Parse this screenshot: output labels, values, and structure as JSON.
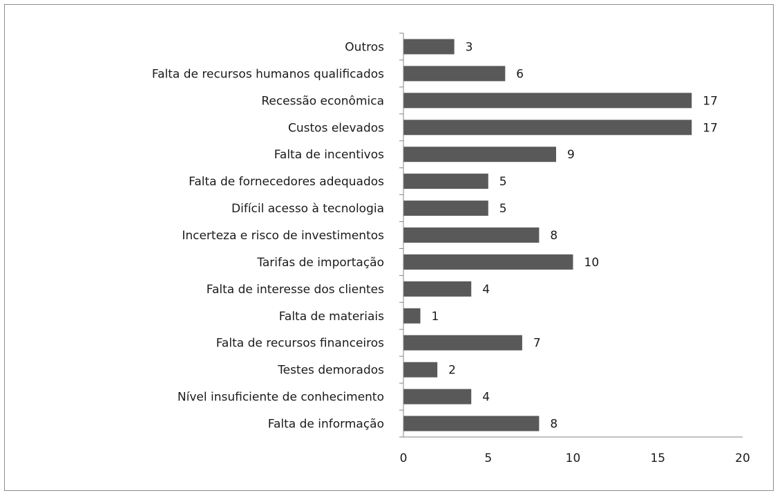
{
  "chart_data": {
    "type": "bar",
    "orientation": "horizontal",
    "title": "",
    "xlabel": "",
    "ylabel": "",
    "categories": [
      "Outros",
      "Falta de recursos humanos qualificados",
      "Recessão econômica",
      "Custos elevados",
      "Falta de incentivos",
      "Falta de fornecedores adequados",
      "Difícil acesso à tecnologia",
      "Incerteza e risco de investimentos",
      "Tarifas de importação",
      "Falta de interesse dos clientes",
      "Falta de materiais",
      "Falta de recursos financeiros",
      "Testes demorados",
      "Nível insuficiente de conhecimento",
      "Falta de informação"
    ],
    "values": [
      3,
      6,
      17,
      17,
      9,
      5,
      5,
      8,
      10,
      4,
      1,
      7,
      2,
      4,
      8
    ],
    "xlim": [
      0,
      20
    ],
    "xticks": [
      0,
      5,
      10,
      15,
      20
    ],
    "data_labels": true,
    "grid": false,
    "legend": "none",
    "bar_color": "#595959"
  }
}
